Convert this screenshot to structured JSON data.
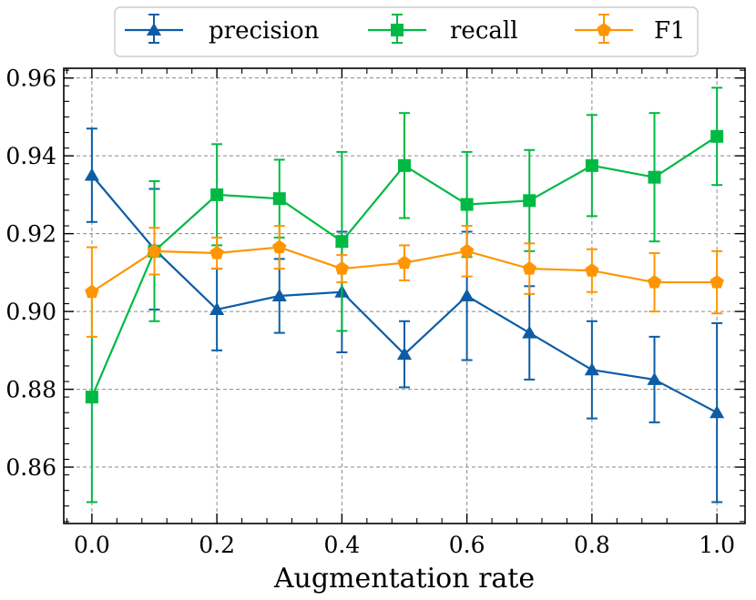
{
  "chart_data": {
    "type": "line",
    "title": "",
    "xlabel": "Augmentation rate",
    "ylabel": "",
    "x": [
      0.0,
      0.1,
      0.2,
      0.3,
      0.4,
      0.5,
      0.6,
      0.7,
      0.8,
      0.9,
      1.0
    ],
    "xlim": [
      -0.045,
      1.045
    ],
    "ylim": [
      0.8455,
      0.9625
    ],
    "xticks": [
      0.0,
      0.2,
      0.4,
      0.6,
      0.8,
      1.0
    ],
    "xtick_labels": [
      "0.0",
      "0.2",
      "0.4",
      "0.6",
      "0.8",
      "1.0"
    ],
    "yticks": [
      0.86,
      0.88,
      0.9,
      0.92,
      0.94,
      0.96
    ],
    "ytick_labels": [
      "0.86",
      "0.88",
      "0.90",
      "0.92",
      "0.94",
      "0.96"
    ],
    "grid": true,
    "legend_position": "top-center (outside)",
    "series": [
      {
        "name": "precision",
        "color": "#0C5DA5",
        "marker": "triangle",
        "values": [
          0.935,
          0.916,
          0.9005,
          0.904,
          0.905,
          0.889,
          0.904,
          0.8945,
          0.885,
          0.8825,
          0.874
        ],
        "errors": [
          0.012,
          0.0155,
          0.0105,
          0.0095,
          0.0155,
          0.0085,
          0.0165,
          0.012,
          0.0125,
          0.011,
          0.023
        ]
      },
      {
        "name": "recall",
        "color": "#00B945",
        "marker": "square",
        "values": [
          0.878,
          0.9155,
          0.93,
          0.929,
          0.918,
          0.9375,
          0.9275,
          0.9285,
          0.9375,
          0.9345,
          0.945
        ],
        "errors": [
          0.027,
          0.018,
          0.013,
          0.01,
          0.023,
          0.0135,
          0.0135,
          0.013,
          0.013,
          0.0165,
          0.0125
        ]
      },
      {
        "name": "F1",
        "color": "#FF9500",
        "marker": "pentagon",
        "values": [
          0.905,
          0.9155,
          0.915,
          0.9165,
          0.911,
          0.9125,
          0.9155,
          0.911,
          0.9105,
          0.9075,
          0.9075
        ],
        "errors": [
          0.0115,
          0.006,
          0.004,
          0.0055,
          0.0035,
          0.0045,
          0.0065,
          0.0065,
          0.0055,
          0.0075,
          0.008
        ]
      }
    ]
  }
}
